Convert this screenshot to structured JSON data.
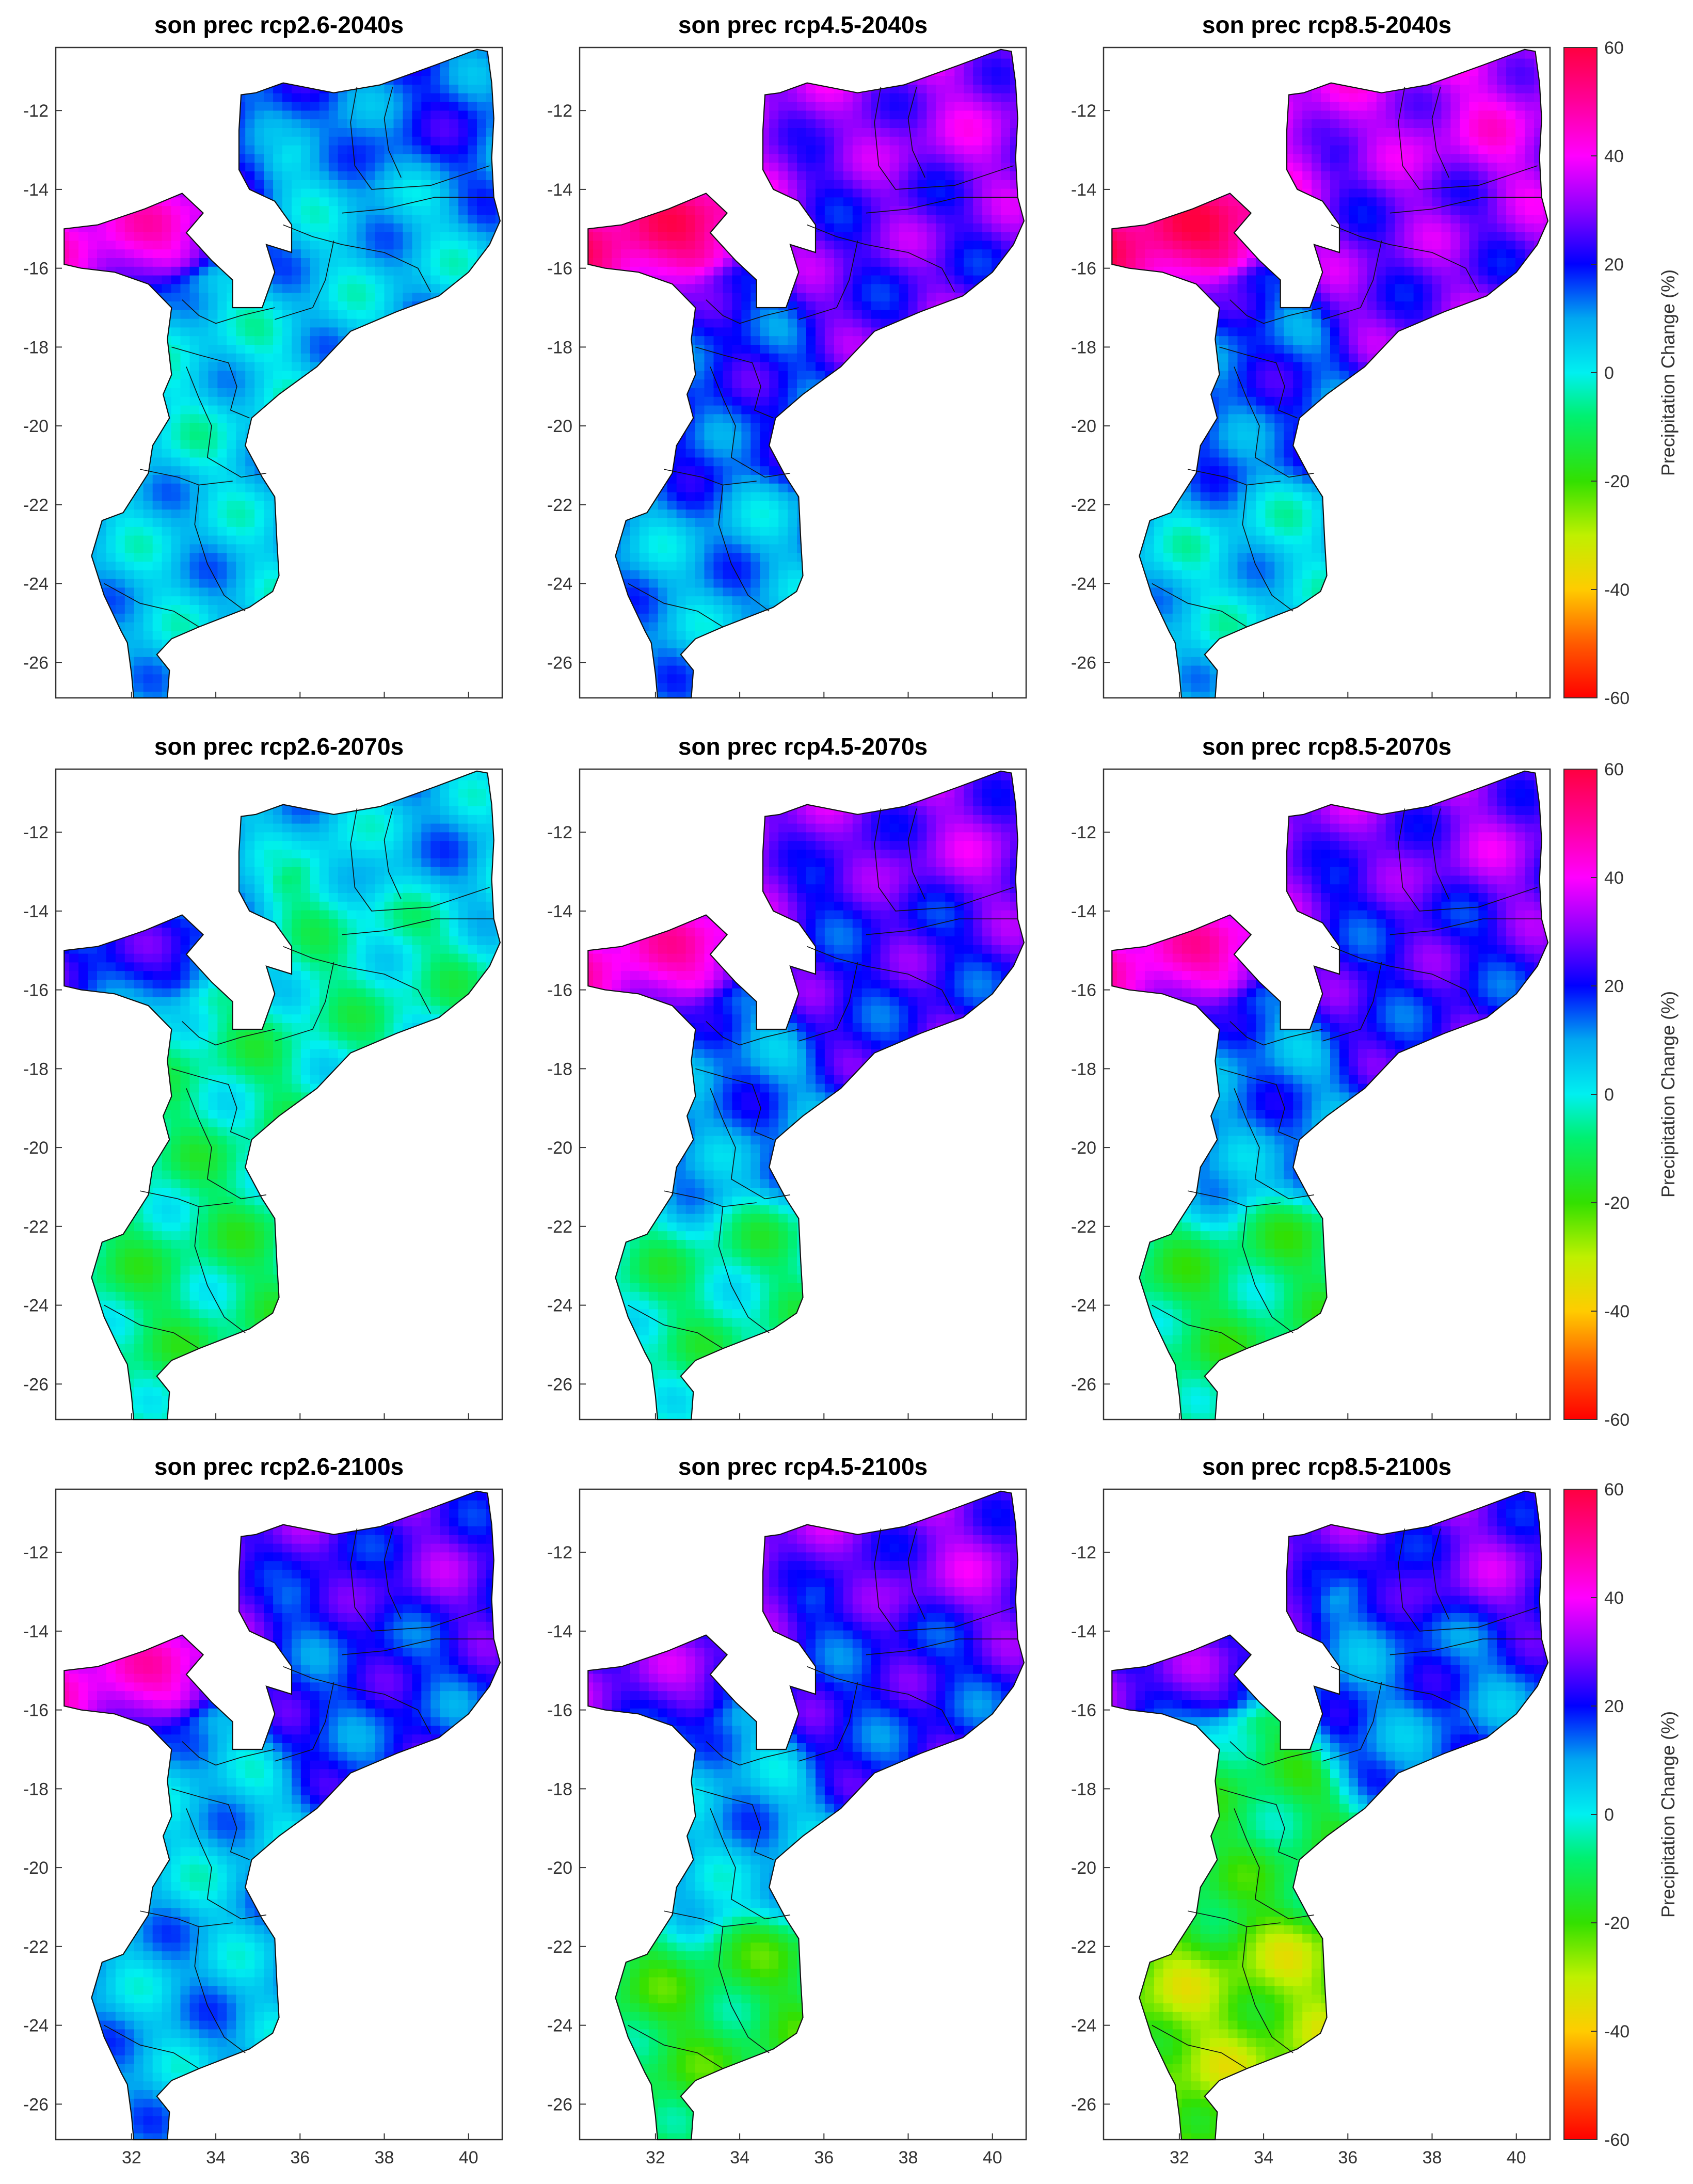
{
  "figure": {
    "lon_range": [
      30.2,
      40.8
    ],
    "lat_range": [
      -26.9,
      -10.4
    ],
    "x_ticks": [
      32,
      34,
      36,
      38,
      40
    ],
    "y_ticks": [
      -12,
      -14,
      -16,
      -18,
      -20,
      -22,
      -24,
      -26
    ],
    "panels": [
      {
        "title": "son prec rcp2.6-2040s",
        "scenario": "rcp2.6",
        "period": "2040s",
        "south_mean": 6,
        "central_mean": 3,
        "north_mean": 6,
        "northeast_mean": 16,
        "west_lobe_peak": 40,
        "show_x_ticks": false
      },
      {
        "title": "son prec rcp4.5-2040s",
        "scenario": "rcp4.5",
        "period": "2040s",
        "south_mean": 9,
        "central_mean": 18,
        "north_mean": 26,
        "northeast_mean": 32,
        "west_lobe_peak": 50,
        "show_x_ticks": false
      },
      {
        "title": "son prec rcp8.5-2040s",
        "scenario": "rcp8.5",
        "period": "2040s",
        "south_mean": 4,
        "central_mean": 16,
        "north_mean": 28,
        "northeast_mean": 36,
        "west_lobe_peak": 52,
        "show_x_ticks": false
      },
      {
        "title": "son prec rcp2.6-2070s",
        "scenario": "rcp2.6",
        "period": "2070s",
        "south_mean": -8,
        "central_mean": -6,
        "north_mean": -4,
        "northeast_mean": 8,
        "west_lobe_peak": 20,
        "show_x_ticks": false
      },
      {
        "title": "son prec rcp4.5-2070s",
        "scenario": "rcp4.5",
        "period": "2070s",
        "south_mean": -6,
        "central_mean": 12,
        "north_mean": 22,
        "northeast_mean": 30,
        "west_lobe_peak": 42,
        "show_x_ticks": false
      },
      {
        "title": "son prec rcp8.5-2070s",
        "scenario": "rcp8.5",
        "period": "2070s",
        "south_mean": -10,
        "central_mean": 12,
        "north_mean": 22,
        "northeast_mean": 30,
        "west_lobe_peak": 42,
        "show_x_ticks": false
      },
      {
        "title": "son prec rcp2.6-2100s",
        "scenario": "rcp2.6",
        "period": "2100s",
        "south_mean": 8,
        "central_mean": 6,
        "north_mean": 18,
        "northeast_mean": 26,
        "west_lobe_peak": 40,
        "show_x_ticks": true
      },
      {
        "title": "son prec rcp4.5-2100s",
        "scenario": "rcp4.5",
        "period": "2100s",
        "south_mean": -14,
        "central_mean": 8,
        "north_mean": 20,
        "northeast_mean": 30,
        "west_lobe_peak": 28,
        "show_x_ticks": true
      },
      {
        "title": "son prec rcp8.5-2100s",
        "scenario": "rcp8.5",
        "period": "2100s",
        "south_mean": -26,
        "central_mean": -12,
        "north_mean": 14,
        "northeast_mean": 28,
        "west_lobe_peak": 26,
        "show_x_ticks": true
      }
    ],
    "colorbar": {
      "label": "Precipitation Change (%)",
      "min": -60,
      "max": 60,
      "ticks": [
        60,
        40,
        20,
        0,
        -20,
        -40,
        -60
      ],
      "stops": [
        {
          "v": -60,
          "color": "#ff0000"
        },
        {
          "v": -50,
          "color": "#ff5a00"
        },
        {
          "v": -40,
          "color": "#ffcc00"
        },
        {
          "v": -30,
          "color": "#bff000"
        },
        {
          "v": -20,
          "color": "#33e000"
        },
        {
          "v": -8,
          "color": "#00f070"
        },
        {
          "v": 0,
          "color": "#00f0f0"
        },
        {
          "v": 10,
          "color": "#00a8f0"
        },
        {
          "v": 20,
          "color": "#0000ff"
        },
        {
          "v": 30,
          "color": "#8a00ff"
        },
        {
          "v": 40,
          "color": "#ff00ff"
        },
        {
          "v": 50,
          "color": "#ff0099"
        },
        {
          "v": 60,
          "color": "#ff0040"
        }
      ]
    }
  }
}
